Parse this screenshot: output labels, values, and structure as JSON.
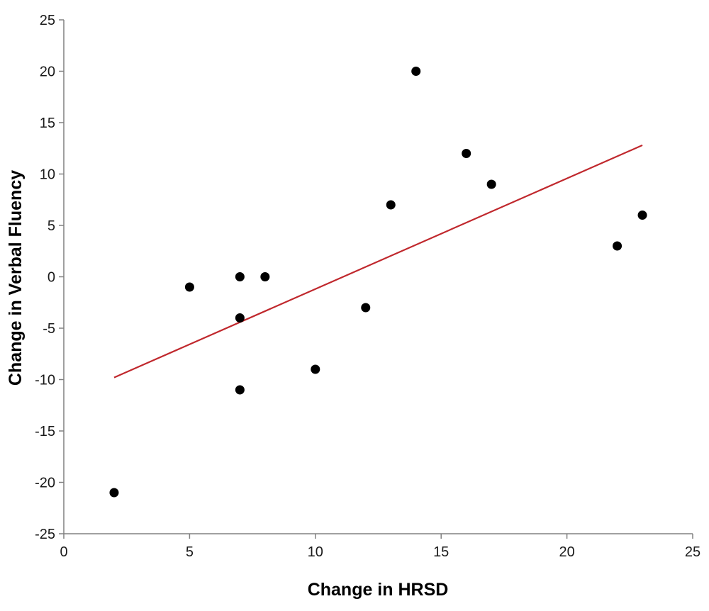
{
  "chart_data": {
    "type": "scatter",
    "title": "",
    "xlabel": "Change in HRSD",
    "ylabel": "Change in Verbal Fluency",
    "xlim": [
      0,
      25
    ],
    "ylim": [
      -25,
      25
    ],
    "x_ticks": [
      0,
      5,
      10,
      15,
      20,
      25
    ],
    "y_ticks": [
      -25,
      -20,
      -15,
      -10,
      -5,
      0,
      5,
      10,
      15,
      20,
      25
    ],
    "x_tick_labels": [
      "0",
      "5",
      "10",
      "15",
      "20",
      "25"
    ],
    "y_tick_labels": [
      "-25",
      "-20",
      "-15",
      "-10",
      "-5",
      "0",
      "5",
      "10",
      "15",
      "20",
      "25"
    ],
    "grid": false,
    "legend": "none",
    "series": [
      {
        "points": [
          {
            "x": 2,
            "y": -21
          },
          {
            "x": 5,
            "y": -1
          },
          {
            "x": 7,
            "y": 0
          },
          {
            "x": 7,
            "y": -4
          },
          {
            "x": 7,
            "y": -11
          },
          {
            "x": 8,
            "y": 0
          },
          {
            "x": 10,
            "y": -9
          },
          {
            "x": 12,
            "y": -3
          },
          {
            "x": 13,
            "y": 7
          },
          {
            "x": 14,
            "y": 20
          },
          {
            "x": 16,
            "y": 12
          },
          {
            "x": 17,
            "y": 9
          },
          {
            "x": 22,
            "y": 3
          },
          {
            "x": 23,
            "y": 6
          }
        ],
        "marker_color": "#000000"
      }
    ],
    "trendline": {
      "type": "linear",
      "x": [
        2,
        23
      ],
      "y": [
        -9.8,
        12.8
      ],
      "color": "#c0282d"
    },
    "axis_color": "#808080"
  }
}
